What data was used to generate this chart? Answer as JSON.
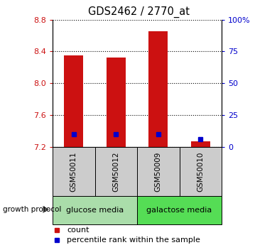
{
  "title": "GDS2462 / 2770_at",
  "samples": [
    "GSM50011",
    "GSM50012",
    "GSM50009",
    "GSM50010"
  ],
  "count_values": [
    8.35,
    8.32,
    8.65,
    7.27
  ],
  "percentile_values": [
    10,
    10,
    10,
    6
  ],
  "ylim_left": [
    7.2,
    8.8
  ],
  "ylim_right": [
    0,
    100
  ],
  "yticks_left": [
    7.2,
    7.6,
    8.0,
    8.4,
    8.8
  ],
  "yticks_right": [
    0,
    25,
    50,
    75,
    100
  ],
  "bar_color": "#cc1111",
  "percentile_color": "#0000cc",
  "bar_width": 0.45,
  "group1_color": "#aaddaa",
  "group2_color": "#55dd55",
  "group_label_prefix": "growth protocol",
  "group1_label": "glucose media",
  "group2_label": "galactose media",
  "legend_count_label": "count",
  "legend_percentile_label": "percentile rank within the sample",
  "grid_color": "black",
  "grid_linestyle": ":",
  "tick_label_color_left": "#cc1111",
  "tick_label_color_right": "#0000cc",
  "sample_box_color": "#cccccc",
  "bar_bottom": 7.2
}
